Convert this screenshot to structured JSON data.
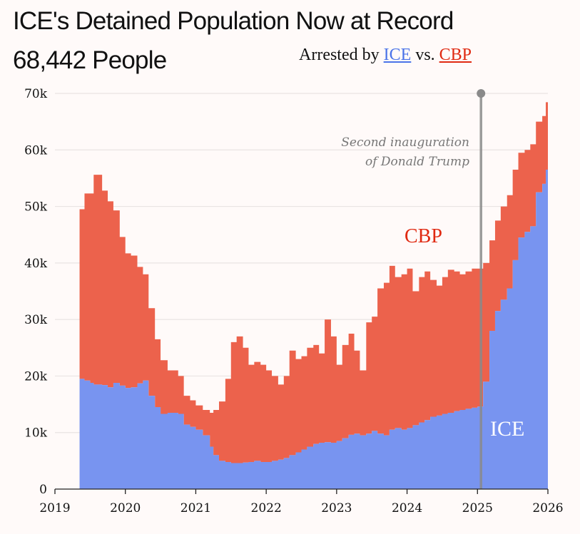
{
  "header": {
    "title_line1": "ICE's Detained Population Now at Record",
    "title_line2": "68,442 People",
    "subtitle_prefix": "Arrested by",
    "subtitle_ice": "ICE",
    "subtitle_mid": "vs.",
    "subtitle_cbp": "CBP"
  },
  "colors": {
    "ice": "#7894f0",
    "cbp": "#ec624c",
    "ice_text": "#4a73e8",
    "cbp_text": "#e02a12",
    "annotation_line": "#8a8a8a"
  },
  "chart_data": {
    "type": "area",
    "stacked": true,
    "title": "ICE's Detained Population Now at Record 68,442 People",
    "subtitle": "Arrested by ICE vs. CBP",
    "xlabel": "",
    "ylabel": "",
    "xlim": [
      2019,
      2026
    ],
    "ylim": [
      0,
      70000
    ],
    "x_ticks": [
      "2019",
      "2020",
      "2021",
      "2022",
      "2023",
      "2024",
      "2025",
      "2026"
    ],
    "y_ticks": [
      "0",
      "10k",
      "20k",
      "30k",
      "40k",
      "50k",
      "60k",
      "70k"
    ],
    "grid": "horizontal",
    "legend": "inline labels",
    "series_labels": {
      "cbp": "CBP",
      "ice": "ICE"
    },
    "annotation": {
      "x": 2025.05,
      "line1": "Second inauguration",
      "line2": "of Donald Trump"
    },
    "x": [
      2019.35,
      2019.42,
      2019.5,
      2019.55,
      2019.67,
      2019.75,
      2019.83,
      2019.92,
      2020.0,
      2020.08,
      2020.17,
      2020.25,
      2020.33,
      2020.42,
      2020.5,
      2020.6,
      2020.75,
      2020.83,
      2020.92,
      2021.0,
      2021.1,
      2021.2,
      2021.25,
      2021.33,
      2021.42,
      2021.5,
      2021.58,
      2021.67,
      2021.75,
      2021.83,
      2021.92,
      2022.0,
      2022.08,
      2022.17,
      2022.25,
      2022.33,
      2022.42,
      2022.5,
      2022.58,
      2022.67,
      2022.75,
      2022.83,
      2022.92,
      2023.0,
      2023.08,
      2023.17,
      2023.25,
      2023.33,
      2023.42,
      2023.5,
      2023.58,
      2023.67,
      2023.75,
      2023.83,
      2023.92,
      2024.0,
      2024.08,
      2024.17,
      2024.25,
      2024.33,
      2024.42,
      2024.5,
      2024.58,
      2024.67,
      2024.75,
      2024.83,
      2024.92,
      2025.0,
      2025.08,
      2025.17,
      2025.25,
      2025.33,
      2025.42,
      2025.5,
      2025.58,
      2025.67,
      2025.75,
      2025.83,
      2025.92,
      2025.97
    ],
    "series": [
      {
        "name": "ICE",
        "values": [
          19500,
          19200,
          18800,
          18500,
          18400,
          18000,
          18800,
          18300,
          17900,
          18000,
          18700,
          19200,
          16500,
          14500,
          13300,
          13500,
          13300,
          11400,
          11000,
          10500,
          9500,
          7500,
          6000,
          5000,
          4800,
          4600,
          4600,
          4700,
          4800,
          5000,
          4800,
          4800,
          5000,
          5200,
          5500,
          6000,
          6500,
          7000,
          7500,
          8000,
          8200,
          8300,
          8200,
          8500,
          9000,
          9600,
          9800,
          9500,
          9800,
          10300,
          9800,
          9500,
          10500,
          10800,
          10500,
          10800,
          11300,
          11800,
          12200,
          12800,
          13000,
          13300,
          13500,
          13800,
          14000,
          14200,
          14400,
          14600,
          19000,
          28000,
          31500,
          33500,
          35500,
          40500,
          44500,
          45500,
          46500,
          52500,
          54000,
          56500
        ]
      },
      {
        "name": "CBP",
        "values": [
          30000,
          33100,
          33500,
          37100,
          34400,
          32900,
          30500,
          26300,
          23800,
          23300,
          20600,
          18800,
          15500,
          12000,
          9500,
          7500,
          6700,
          5100,
          4700,
          4300,
          4500,
          6000,
          8000,
          10500,
          14700,
          21400,
          22400,
          20300,
          17200,
          17500,
          17200,
          16200,
          15000,
          13300,
          14500,
          18500,
          16500,
          16500,
          17500,
          17500,
          15800,
          21700,
          18800,
          13500,
          16500,
          17900,
          14700,
          11500,
          19700,
          20200,
          25700,
          27000,
          29000,
          26700,
          27500,
          28200,
          23700,
          25700,
          26300,
          24200,
          23000,
          24200,
          25300,
          24700,
          24000,
          24300,
          24600,
          24400,
          21000,
          16000,
          16000,
          16500,
          16500,
          16000,
          15000,
          14500,
          14500,
          12500,
          12000,
          11942
        ]
      }
    ],
    "latest_total": 68442
  }
}
